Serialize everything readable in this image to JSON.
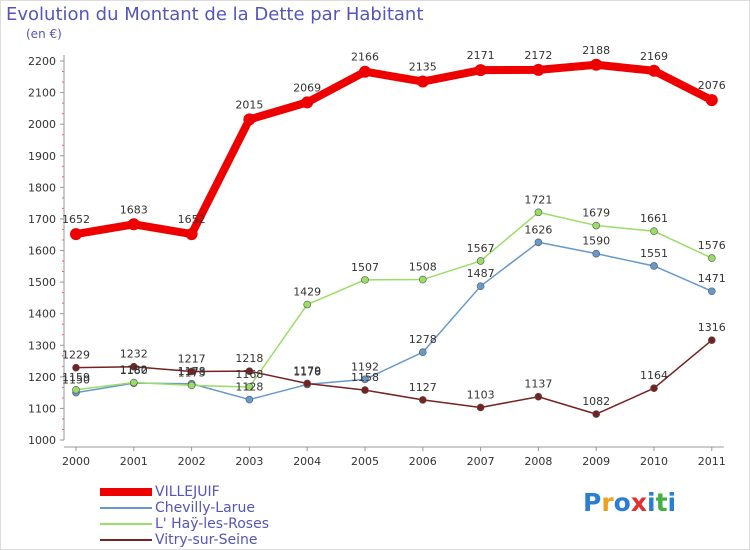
{
  "header": {
    "title": "Evolution du Montant de la Dette par Habitant",
    "unit": "(en €)"
  },
  "brand": {
    "letters": [
      "P",
      "r",
      "o",
      "x",
      "i",
      "t",
      "i"
    ],
    "colors": [
      "#2a7fd4",
      "#f0a020",
      "#2a7fd4",
      "#e03030",
      "#2a7fd4",
      "#40b040",
      "#2a7fd4"
    ]
  },
  "chart_data": {
    "type": "line",
    "title": "Evolution du Montant de la Dette par Habitant",
    "ylabel": "(en €)",
    "xlabel": "",
    "ylim": [
      1000,
      2200
    ],
    "yticks": [
      "1000",
      "1100",
      "1200",
      "1300",
      "1400",
      "1500",
      "1600",
      "1700",
      "1800",
      "1900",
      "2000",
      "2100",
      "2200"
    ],
    "categories": [
      "2000",
      "2001",
      "2002",
      "2003",
      "2004",
      "2005",
      "2006",
      "2007",
      "2008",
      "2009",
      "2010",
      "2011"
    ],
    "grid": false,
    "legend": "bottom",
    "series": [
      {
        "name": "VILLEJUIF",
        "color": "#ee0000",
        "values": [
          1652,
          1683,
          1652,
          2015,
          2069,
          2166,
          2135,
          2171,
          2172,
          2188,
          2169,
          2076
        ],
        "labels": [
          "1652",
          "1683",
          "1652",
          "2015",
          "2069",
          "2166",
          "2135",
          "2171",
          "2172",
          "2188",
          "2169",
          "2076"
        ]
      },
      {
        "name": "Chevilly-Larue",
        "color": "#6699cc",
        "values": [
          1150,
          1180,
          1178,
          1128,
          1176,
          1192,
          1278,
          1487,
          1626,
          1590,
          1551,
          1471
        ],
        "labels": [
          "1150",
          "1180",
          "1178",
          "1128",
          "1176",
          "1192",
          "1278",
          "1487",
          "1626",
          "1590",
          "1551",
          "1471"
        ]
      },
      {
        "name": "L' Haÿ-les-Roses",
        "color": "#99dd66",
        "values": [
          1159,
          1182,
          1173,
          1168,
          1429,
          1507,
          1508,
          1567,
          1721,
          1679,
          1661,
          1576
        ],
        "labels": [
          "1159",
          "1182",
          "1173",
          "1168",
          "1429",
          "1507",
          "1508",
          "1567",
          "1721",
          "1679",
          "1661",
          "1576"
        ]
      },
      {
        "name": "Vitry-sur-Seine",
        "color": "#772222",
        "values": [
          1229,
          1232,
          1217,
          1218,
          1179,
          1158,
          1127,
          1103,
          1137,
          1082,
          1164,
          1316
        ],
        "labels": [
          "1229",
          "1232",
          "1217",
          "1218",
          "1179",
          "1158",
          "1127",
          "1103",
          "1137",
          "1082",
          "1164",
          "1316"
        ]
      }
    ]
  }
}
